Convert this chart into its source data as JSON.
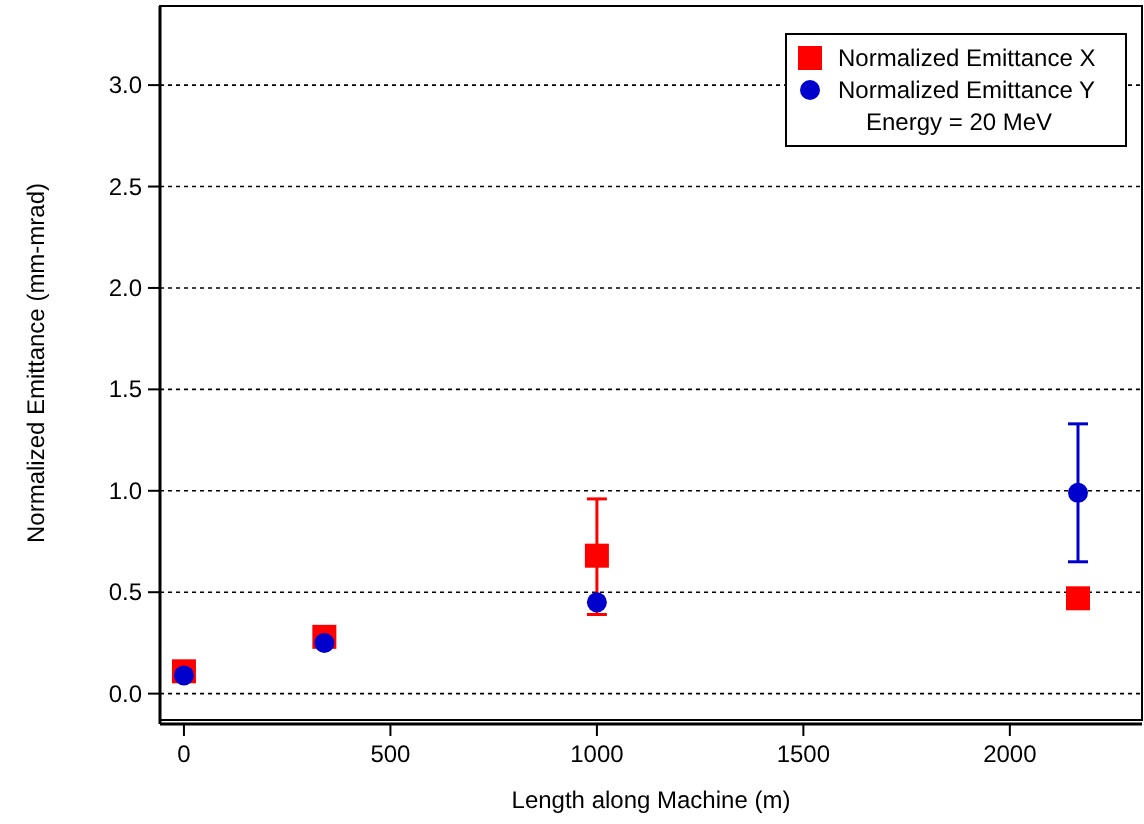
{
  "chart_data": {
    "type": "scatter",
    "xlabel": "Length along Machine (m)",
    "ylabel": "Normalized Emittance (mm-mrad)",
    "xlim": [
      -58,
      2320
    ],
    "ylim": [
      -0.13,
      3.39
    ],
    "xticks": [
      0,
      500,
      1000,
      1500,
      2000
    ],
    "yticks": [
      {
        "value": 0,
        "label": "0.0"
      },
      {
        "value": 0.5,
        "label": "0.5"
      },
      {
        "value": 1,
        "label": "1.0"
      },
      {
        "value": 1.5,
        "label": "1.5"
      },
      {
        "value": 2,
        "label": "2.0"
      },
      {
        "value": 2.5,
        "label": "2.5"
      },
      {
        "value": 3,
        "label": "3.0"
      }
    ],
    "grid": "y",
    "legend": "top right",
    "annotations": [
      "Energy = 20 MeV"
    ],
    "series": [
      {
        "name": "Normalized Emittance X",
        "color": "#ff0000",
        "marker": "square",
        "x": [
          0,
          340,
          1000,
          2165
        ],
        "values": [
          0.11,
          0.28,
          0.68,
          0.47
        ],
        "errors": [
          null,
          null,
          [
            0.39,
            0.96
          ],
          null
        ]
      },
      {
        "name": "Normalized Emittance Y",
        "color": "#0000cc",
        "marker": "circle",
        "x": [
          0,
          340,
          1000,
          2165
        ],
        "values": [
          0.09,
          0.25,
          0.45,
          0.99
        ],
        "errors": [
          null,
          null,
          null,
          [
            0.65,
            1.33
          ]
        ]
      }
    ]
  }
}
